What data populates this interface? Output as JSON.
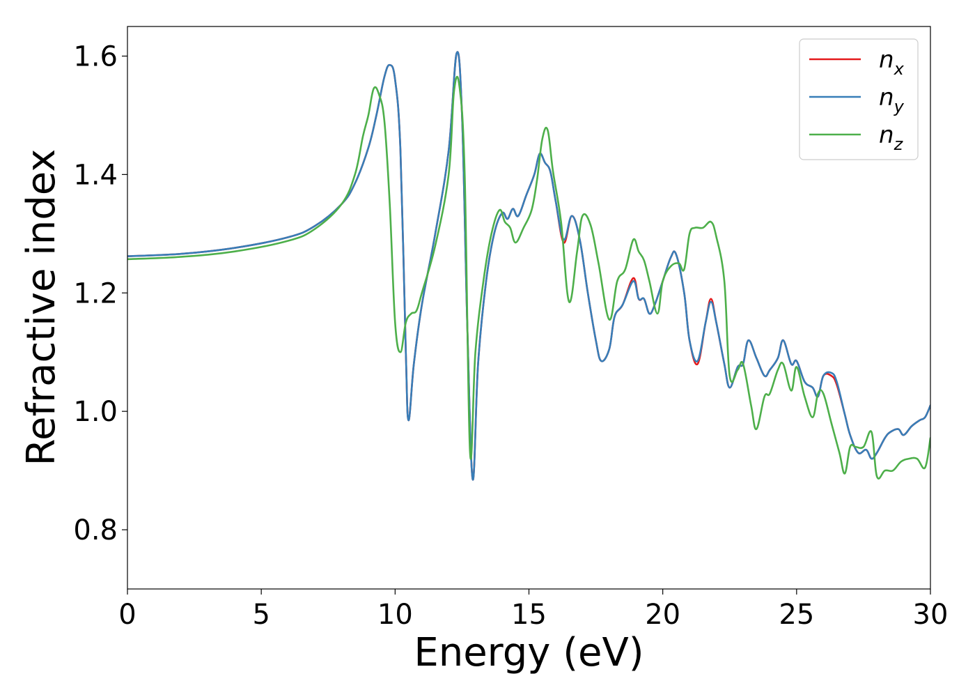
{
  "chart_data": {
    "type": "line",
    "title": "",
    "xlabel": "Energy (eV)",
    "ylabel": "Refractive index",
    "xlim": [
      0,
      30
    ],
    "ylim": [
      0.7,
      1.65
    ],
    "xticks": [
      0,
      5,
      10,
      15,
      20,
      25,
      30
    ],
    "yticks": [
      0.8,
      1.0,
      1.2,
      1.4,
      1.6
    ],
    "xtick_labels": [
      "0",
      "5",
      "10",
      "15",
      "20",
      "25",
      "30"
    ],
    "ytick_labels": [
      "0.8",
      "1.0",
      "1.2",
      "1.4",
      "1.6"
    ],
    "grid": false,
    "legend_position": "top-right",
    "series": [
      {
        "name": "n_x",
        "label_base": "n",
        "label_sub": "x",
        "color": "#e41a1c",
        "x": [
          0,
          2,
          4,
          6,
          7,
          8,
          8.5,
          9,
          9.3,
          9.6,
          9.8,
          10.0,
          10.2,
          10.4,
          10.5,
          10.7,
          11.0,
          11.5,
          12.0,
          12.3,
          12.5,
          12.7,
          12.9,
          13.1,
          13.4,
          13.7,
          14.0,
          14.2,
          14.4,
          14.6,
          14.9,
          15.2,
          15.4,
          15.6,
          15.8,
          16.0,
          16.3,
          16.6,
          16.9,
          17.2,
          17.5,
          17.7,
          18.0,
          18.2,
          18.5,
          18.9,
          19.1,
          19.3,
          19.5,
          19.7,
          20.0,
          20.3,
          20.5,
          20.8,
          21.0,
          21.3,
          21.6,
          21.8,
          22.0,
          22.3,
          22.5,
          22.8,
          23.0,
          23.2,
          23.5,
          23.8,
          24.0,
          24.3,
          24.5,
          24.8,
          25.0,
          25.3,
          25.6,
          25.8,
          26.0,
          26.3,
          26.5,
          26.8,
          27.0,
          27.3,
          27.6,
          27.8,
          28.0,
          28.3,
          28.5,
          28.8,
          29.0,
          29.3,
          29.6,
          29.8,
          30
        ],
        "y": [
          1.262,
          1.266,
          1.276,
          1.294,
          1.313,
          1.35,
          1.385,
          1.445,
          1.5,
          1.565,
          1.585,
          1.56,
          1.44,
          1.1,
          0.985,
          1.08,
          1.18,
          1.3,
          1.44,
          1.605,
          1.5,
          1.14,
          0.885,
          1.08,
          1.22,
          1.3,
          1.335,
          1.325,
          1.342,
          1.33,
          1.365,
          1.4,
          1.435,
          1.42,
          1.405,
          1.355,
          1.285,
          1.33,
          1.29,
          1.2,
          1.12,
          1.085,
          1.105,
          1.16,
          1.18,
          1.225,
          1.19,
          1.19,
          1.165,
          1.18,
          1.22,
          1.26,
          1.265,
          1.2,
          1.12,
          1.08,
          1.15,
          1.19,
          1.15,
          1.08,
          1.04,
          1.075,
          1.08,
          1.12,
          1.09,
          1.06,
          1.07,
          1.09,
          1.12,
          1.08,
          1.085,
          1.05,
          1.04,
          1.025,
          1.06,
          1.06,
          1.045,
          0.995,
          0.96,
          0.93,
          0.935,
          0.92,
          0.93,
          0.955,
          0.965,
          0.97,
          0.96,
          0.975,
          0.985,
          0.99,
          1.01
        ]
      },
      {
        "name": "n_y",
        "label_base": "n",
        "label_sub": "y",
        "color": "#377eb8",
        "x": [
          0,
          2,
          4,
          6,
          7,
          8,
          8.5,
          9,
          9.3,
          9.6,
          9.8,
          10.0,
          10.2,
          10.4,
          10.5,
          10.7,
          11.0,
          11.5,
          12.0,
          12.3,
          12.5,
          12.7,
          12.9,
          13.1,
          13.4,
          13.7,
          14.0,
          14.2,
          14.4,
          14.6,
          14.9,
          15.2,
          15.4,
          15.6,
          15.8,
          16.0,
          16.3,
          16.6,
          16.9,
          17.2,
          17.5,
          17.7,
          18.0,
          18.2,
          18.5,
          18.9,
          19.1,
          19.3,
          19.5,
          19.7,
          20.0,
          20.3,
          20.5,
          20.8,
          21.0,
          21.3,
          21.6,
          21.8,
          22.0,
          22.3,
          22.5,
          22.8,
          23.0,
          23.2,
          23.5,
          23.8,
          24.0,
          24.3,
          24.5,
          24.8,
          25.0,
          25.3,
          25.6,
          25.8,
          26.0,
          26.3,
          26.5,
          26.8,
          27.0,
          27.3,
          27.6,
          27.8,
          28.0,
          28.3,
          28.5,
          28.8,
          29.0,
          29.3,
          29.6,
          29.8,
          30
        ],
        "y": [
          1.262,
          1.266,
          1.276,
          1.294,
          1.313,
          1.35,
          1.385,
          1.445,
          1.5,
          1.565,
          1.585,
          1.56,
          1.44,
          1.1,
          0.985,
          1.08,
          1.18,
          1.3,
          1.44,
          1.605,
          1.5,
          1.14,
          0.885,
          1.08,
          1.22,
          1.3,
          1.335,
          1.325,
          1.342,
          1.33,
          1.365,
          1.4,
          1.435,
          1.42,
          1.405,
          1.355,
          1.29,
          1.33,
          1.29,
          1.2,
          1.12,
          1.085,
          1.105,
          1.16,
          1.18,
          1.22,
          1.19,
          1.19,
          1.165,
          1.18,
          1.22,
          1.26,
          1.265,
          1.2,
          1.12,
          1.085,
          1.15,
          1.185,
          1.15,
          1.08,
          1.04,
          1.075,
          1.08,
          1.12,
          1.09,
          1.06,
          1.07,
          1.09,
          1.12,
          1.08,
          1.085,
          1.05,
          1.04,
          1.025,
          1.06,
          1.065,
          1.05,
          0.995,
          0.96,
          0.93,
          0.935,
          0.92,
          0.93,
          0.955,
          0.965,
          0.97,
          0.96,
          0.975,
          0.985,
          0.99,
          1.01
        ]
      },
      {
        "name": "n_z",
        "label_base": "n",
        "label_sub": "z",
        "color": "#4daf4a",
        "x": [
          0,
          2,
          4,
          6,
          7,
          8,
          8.5,
          8.8,
          9.0,
          9.2,
          9.4,
          9.6,
          9.8,
          10.0,
          10.2,
          10.4,
          10.6,
          10.8,
          11.0,
          11.5,
          12.0,
          12.2,
          12.4,
          12.6,
          12.8,
          13.0,
          13.3,
          13.6,
          13.9,
          14.1,
          14.3,
          14.5,
          14.8,
          15.1,
          15.3,
          15.5,
          15.7,
          15.9,
          16.2,
          16.5,
          16.8,
          17.0,
          17.3,
          17.6,
          18.0,
          18.3,
          18.6,
          18.9,
          19.1,
          19.3,
          19.5,
          19.8,
          20.0,
          20.3,
          20.6,
          20.8,
          21.0,
          21.2,
          21.5,
          21.8,
          22.0,
          22.3,
          22.5,
          22.8,
          23.0,
          23.3,
          23.5,
          23.8,
          24.0,
          24.3,
          24.5,
          24.8,
          25.0,
          25.3,
          25.6,
          25.8,
          26.0,
          26.3,
          26.6,
          26.8,
          27.0,
          27.2,
          27.5,
          27.8,
          28.0,
          28.3,
          28.6,
          28.9,
          29.2,
          29.5,
          29.8,
          30
        ],
        "y": [
          1.257,
          1.261,
          1.27,
          1.288,
          1.308,
          1.35,
          1.4,
          1.465,
          1.5,
          1.545,
          1.535,
          1.49,
          1.35,
          1.15,
          1.1,
          1.15,
          1.165,
          1.17,
          1.2,
          1.28,
          1.4,
          1.54,
          1.55,
          1.4,
          0.93,
          1.1,
          1.22,
          1.3,
          1.34,
          1.32,
          1.31,
          1.285,
          1.31,
          1.34,
          1.39,
          1.46,
          1.475,
          1.405,
          1.32,
          1.185,
          1.27,
          1.33,
          1.315,
          1.25,
          1.155,
          1.22,
          1.24,
          1.29,
          1.27,
          1.255,
          1.22,
          1.165,
          1.22,
          1.245,
          1.25,
          1.24,
          1.3,
          1.31,
          1.31,
          1.32,
          1.295,
          1.22,
          1.06,
          1.07,
          1.08,
          1.01,
          0.97,
          1.025,
          1.03,
          1.07,
          1.08,
          1.035,
          1.075,
          1.025,
          0.99,
          1.03,
          1.03,
          0.98,
          0.93,
          0.895,
          0.94,
          0.94,
          0.94,
          0.965,
          0.89,
          0.9,
          0.9,
          0.915,
          0.92,
          0.92,
          0.905,
          0.955
        ]
      }
    ]
  }
}
